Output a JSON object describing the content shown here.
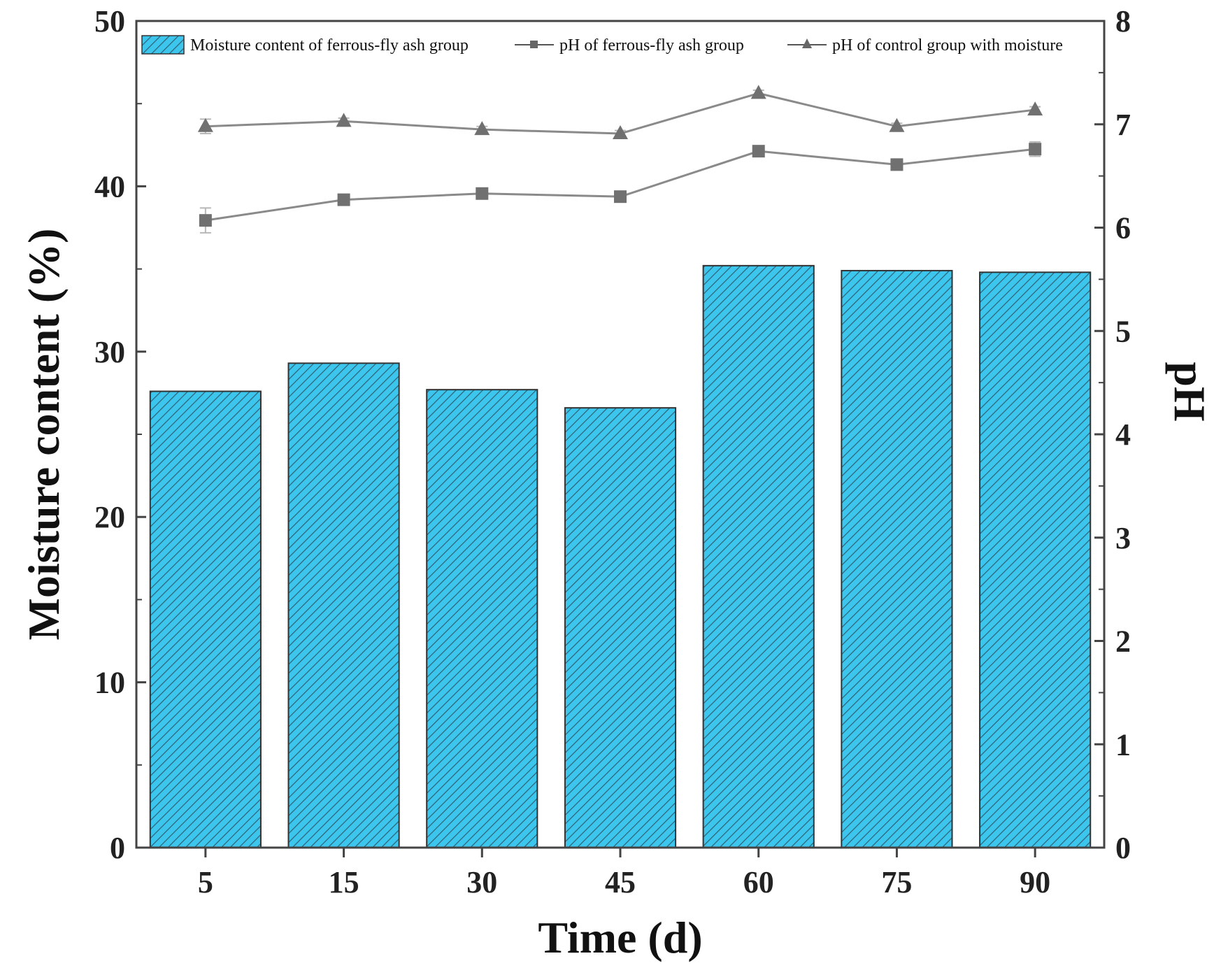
{
  "chart_data": {
    "type": "bar+line",
    "categories": [
      "5",
      "15",
      "30",
      "45",
      "60",
      "75",
      "90"
    ],
    "xlabel": "Time (d)",
    "ylabel_left": "Moisture content (%)",
    "ylabel_right": "pH",
    "ylim_left": [
      0,
      50
    ],
    "ylim_right": [
      0,
      8
    ],
    "yticks_left": [
      "0",
      "10",
      "20",
      "30",
      "40",
      "50"
    ],
    "yticks_right": [
      "0",
      "1",
      "2",
      "3",
      "4",
      "5",
      "6",
      "7",
      "8"
    ],
    "legend_position": "top",
    "series": [
      {
        "name": "Moisture content of ferrous-fly ash group",
        "kind": "bar",
        "axis": "left",
        "color": "#3cc6ee",
        "values": [
          27.6,
          29.3,
          27.7,
          26.6,
          35.2,
          34.9,
          34.8
        ]
      },
      {
        "name": "pH of ferrous-fly ash group",
        "kind": "line",
        "marker": "square",
        "axis": "right",
        "color": "#707070",
        "values": [
          6.07,
          6.27,
          6.33,
          6.3,
          6.74,
          6.61,
          6.76
        ],
        "errors": [
          0.12,
          0.03,
          0.03,
          0.03,
          0.04,
          0.04,
          0.07
        ]
      },
      {
        "name": "pH of control group with moisture",
        "kind": "line",
        "marker": "triangle",
        "axis": "right",
        "color": "#707070",
        "values": [
          6.98,
          7.03,
          6.95,
          6.91,
          7.3,
          6.98,
          7.14
        ],
        "errors": [
          0.07,
          0.03,
          0.03,
          0.03,
          0.03,
          0.03,
          0.03
        ]
      }
    ]
  }
}
